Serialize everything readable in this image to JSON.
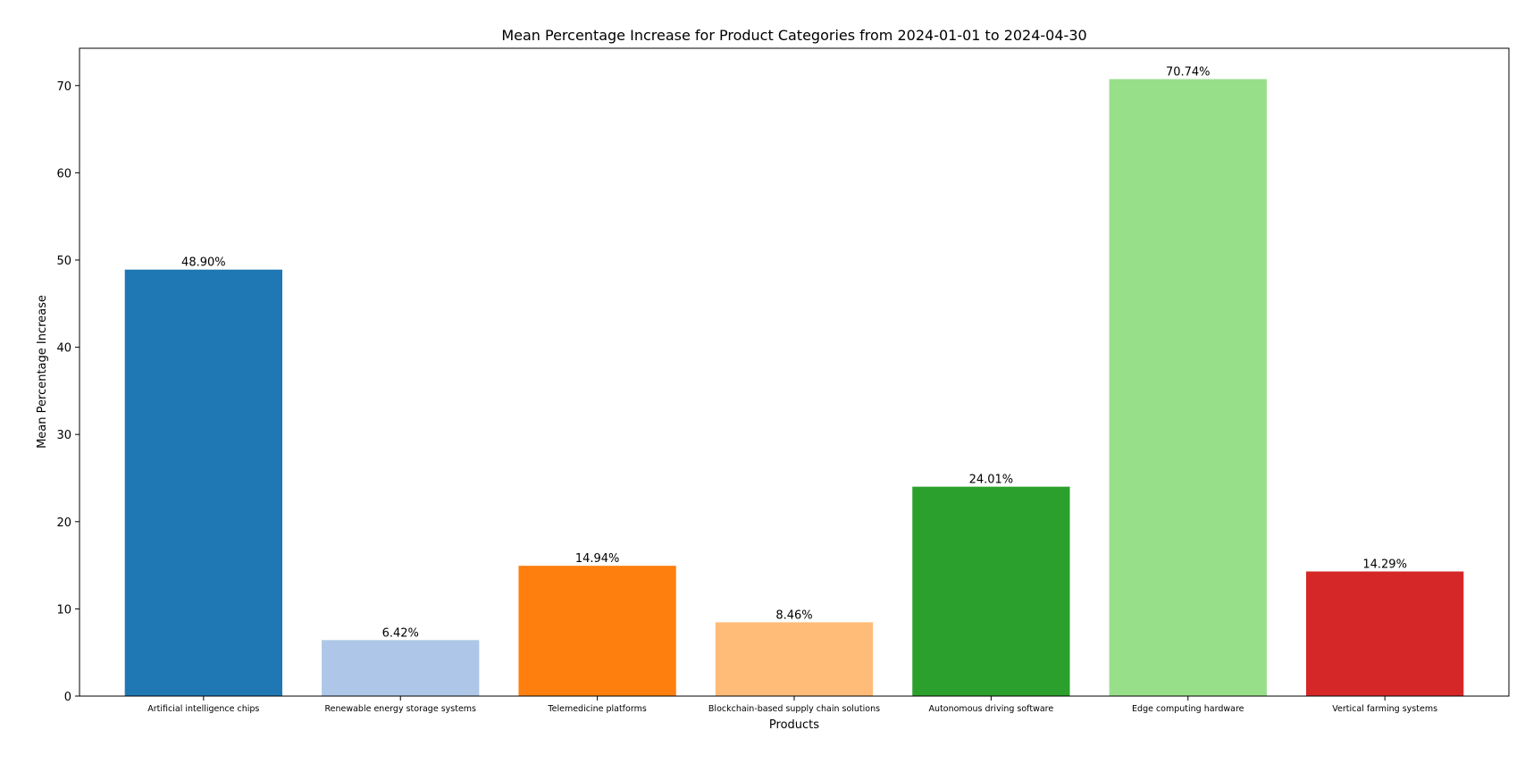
{
  "chart_data": {
    "type": "bar",
    "title": "Mean Percentage Increase for Product Categories from 2024-01-01 to 2024-04-30",
    "xlabel": "Products",
    "ylabel": "Mean Percentage Increase",
    "categories": [
      "Artificial intelligence chips",
      "Renewable energy storage systems",
      "Telemedicine platforms",
      "Blockchain-based supply chain solutions",
      "Autonomous driving software",
      "Edge computing hardware",
      "Vertical farming systems"
    ],
    "values": [
      48.9,
      6.42,
      14.94,
      8.46,
      24.01,
      70.74,
      14.29
    ],
    "value_labels": [
      "48.90%",
      "6.42%",
      "14.94%",
      "8.46%",
      "24.01%",
      "70.74%",
      "14.29%"
    ],
    "colors": [
      "#1f77b4",
      "#aec7e8",
      "#ff7f0e",
      "#ffbb78",
      "#2ca02c",
      "#98df8a",
      "#d62728"
    ],
    "yticks": [
      0,
      10,
      20,
      30,
      40,
      50,
      60,
      70
    ],
    "ylim": [
      0,
      74.28
    ],
    "grid": false,
    "legend": "none"
  }
}
